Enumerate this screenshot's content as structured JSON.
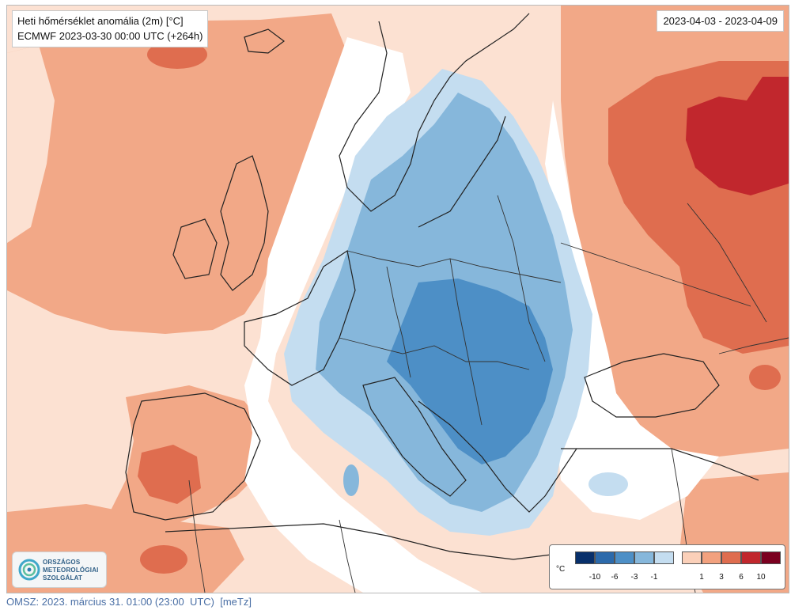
{
  "title": {
    "line1": "Heti hőmérséklet anomália (2m) [°C]",
    "line2": "ECMWF 2023-03-30 00:00 UTC (+264h)"
  },
  "date_range": "2023-04-03 - 2023-04-09",
  "logo": {
    "icon": "omsz-swirl-icon",
    "line1": "ORSZÁGOS",
    "line2": "METEOROLÓGIAI",
    "line3": "SZOLGÁLAT"
  },
  "legend": {
    "unit": "°C",
    "negative_colors": [
      "#08306b",
      "#2c6aab",
      "#4d8fc6",
      "#86b7db",
      "#c4ddf0"
    ],
    "positive_colors": [
      "#fbd0b9",
      "#f2a17e",
      "#df6d4f",
      "#c1272d",
      "#7b0020"
    ],
    "negative_ticks": [
      "-10",
      "-6",
      "-3",
      "-1"
    ],
    "positive_ticks": [
      "1",
      "3",
      "6",
      "10"
    ]
  },
  "footer": "OMSZ: 2023. március 31. 01:00 (23:00  UTC)  [meTz]"
}
